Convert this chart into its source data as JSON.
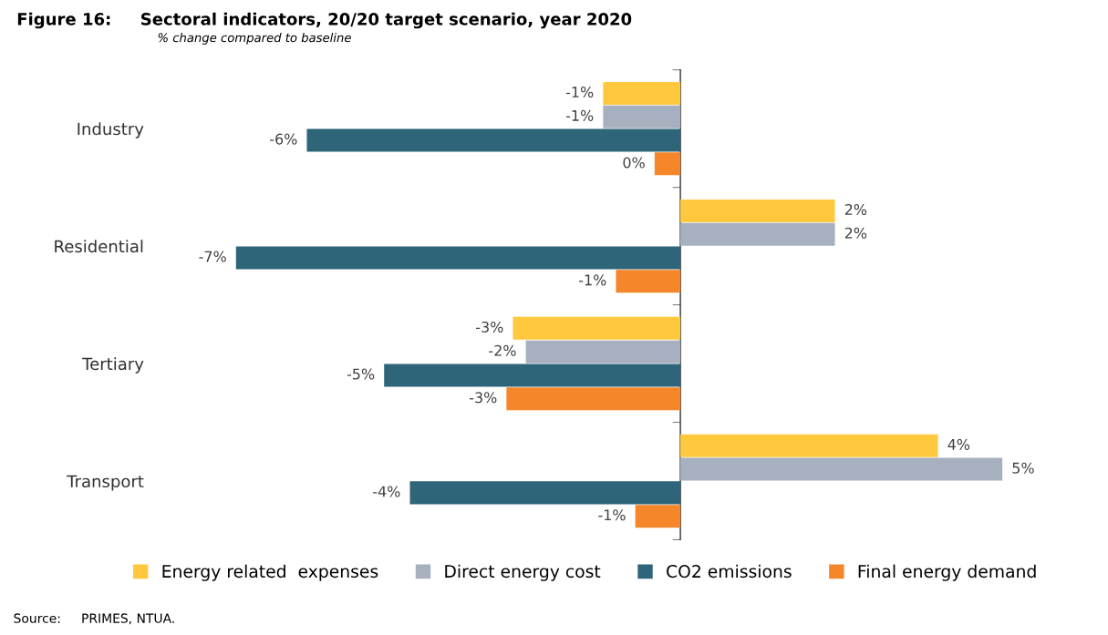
{
  "chart_data": {
    "type": "bar",
    "orientation": "horizontal",
    "title": "Figure 16:     Sectoral indicators, 20/20 target scenario, year 2020",
    "subtitle": "% change compared to baseline",
    "categories": [
      "Industry",
      "Residential",
      "Tertiary",
      "Transport"
    ],
    "series": [
      {
        "name": "Energy related  expenses",
        "color": "#ffc83d",
        "values": [
          -1.2,
          2.4,
          -2.6,
          4.0
        ],
        "value_labels": [
          "-1%",
          "2%",
          "-3%",
          "4%"
        ]
      },
      {
        "name": "Direct energy cost",
        "color": "#a6b0be",
        "values": [
          -1.2,
          2.4,
          -2.4,
          5.0
        ],
        "value_labels": [
          "-1%",
          "2%",
          "-2%",
          "5%"
        ]
      },
      {
        "name": "CO2 emissions",
        "color": "#2e6579",
        "values": [
          -5.8,
          -6.9,
          -4.6,
          -4.2
        ],
        "value_labels": [
          "-6%",
          "-7%",
          "-5%",
          "-4%"
        ]
      },
      {
        "name": "Final energy demand",
        "color": "#f5862a",
        "values": [
          -0.4,
          -1.0,
          -2.7,
          -0.7
        ],
        "value_labels": [
          "0%",
          "-1%",
          "-3%",
          "-1%"
        ]
      }
    ],
    "legend": "bottom",
    "tick_labels": "y",
    "annotations": [
      "Source:     PRIMES, NTUA."
    ]
  }
}
